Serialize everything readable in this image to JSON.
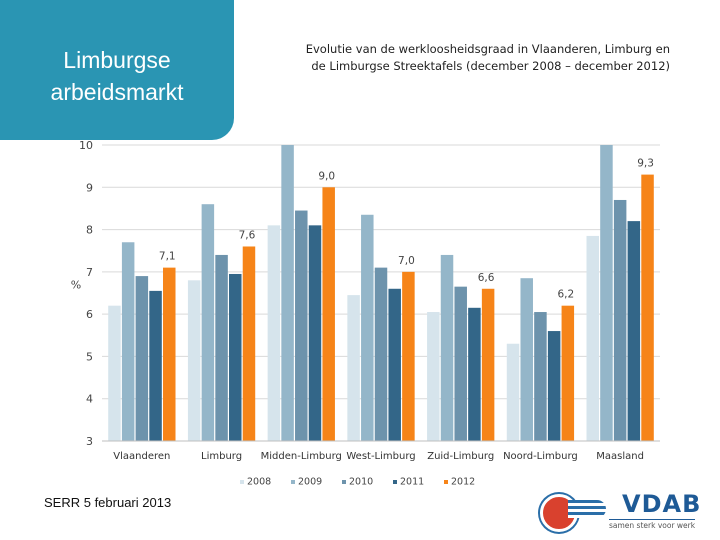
{
  "banner": {
    "title_line1": "Limburgse",
    "title_line2": "arbeidsmarkt"
  },
  "header": {
    "title_line1": "Evolutie van de werkloosheidsgraad in Vlaanderen, Limburg en",
    "title_line2": "de Limburgse Streektafels (december 2008 – december 2012)"
  },
  "footer": {
    "text": "SERR 5 februari 2013"
  },
  "logos": {
    "vdab_text": "VDAB",
    "vdab_tagline": "samen sterk voor werk"
  },
  "chart_data": {
    "type": "bar",
    "ylabel": "%",
    "ylim": [
      3,
      10
    ],
    "yticks": [
      3,
      4,
      5,
      6,
      7,
      8,
      9,
      10
    ],
    "grid": true,
    "legend_position": "bottom",
    "categories": [
      "Vlaanderen",
      "Limburg",
      "Midden-Limburg",
      "West-Limburg",
      "Zuid-Limburg",
      "Noord-Limburg",
      "Maasland"
    ],
    "series": [
      {
        "name": "2008",
        "color": "#d6e4ec",
        "values": [
          6.2,
          6.8,
          8.1,
          6.45,
          6.05,
          5.3,
          7.85
        ]
      },
      {
        "name": "2009",
        "color": "#94b6c9",
        "values": [
          7.7,
          8.6,
          10.0,
          8.35,
          7.4,
          6.85,
          10.0
        ]
      },
      {
        "name": "2010",
        "color": "#6d93ac",
        "values": [
          6.9,
          7.4,
          8.45,
          7.1,
          6.65,
          6.05,
          8.7
        ]
      },
      {
        "name": "2011",
        "color": "#336688",
        "values": [
          6.55,
          6.95,
          8.1,
          6.6,
          6.15,
          5.6,
          8.2
        ]
      },
      {
        "name": "2012",
        "color": "#f68418",
        "values": [
          7.1,
          7.6,
          9.0,
          7.0,
          6.6,
          6.2,
          9.3
        ]
      }
    ],
    "data_labels": [
      {
        "category": "Vlaanderen",
        "series": "2012",
        "text": "7,1"
      },
      {
        "category": "Limburg",
        "series": "2012",
        "text": "7,6"
      },
      {
        "category": "Midden-Limburg",
        "series": "2012",
        "text": "9,0"
      },
      {
        "category": "West-Limburg",
        "series": "2012",
        "text": "7,0"
      },
      {
        "category": "Zuid-Limburg",
        "series": "2012",
        "text": "6,6"
      },
      {
        "category": "Noord-Limburg",
        "series": "2012",
        "text": "6,2"
      },
      {
        "category": "Maasland",
        "series": "2012",
        "text": "9,3"
      }
    ]
  }
}
